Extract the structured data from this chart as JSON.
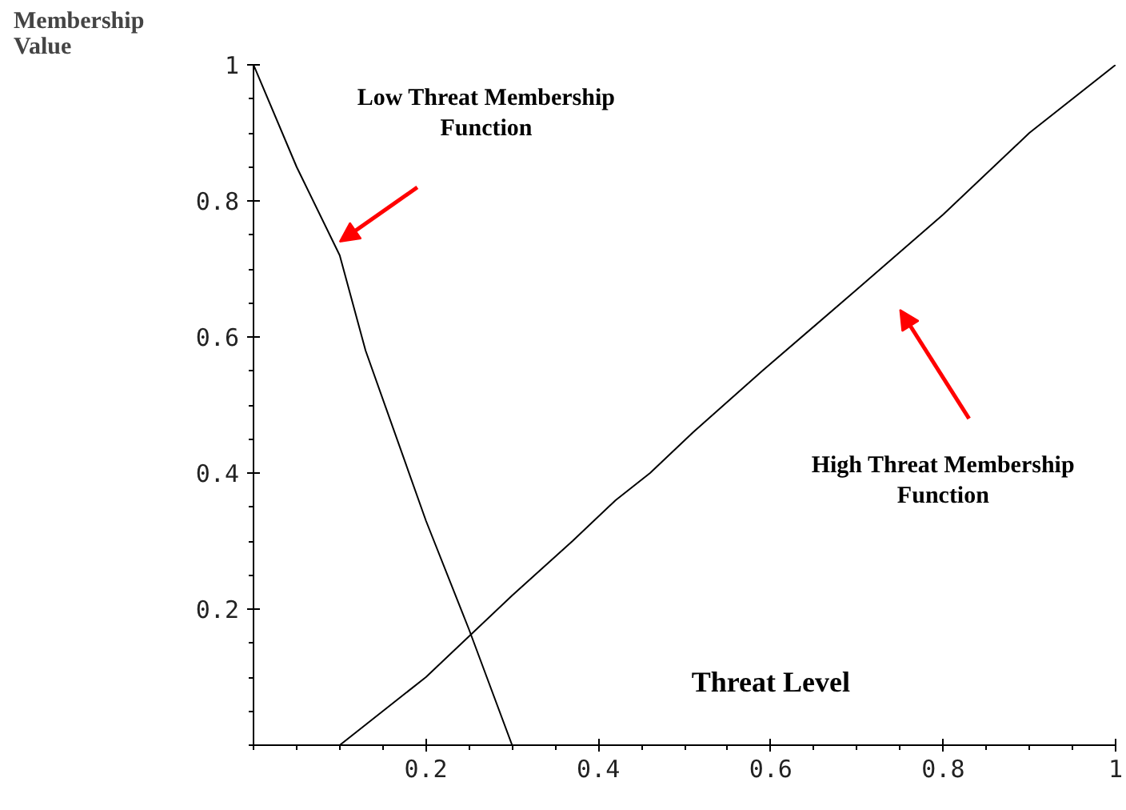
{
  "chart_data": {
    "type": "line",
    "xlabel": "Threat Level",
    "ylabel": "Membership Value",
    "xlim": [
      0,
      1
    ],
    "ylim": [
      0,
      1
    ],
    "xticks": [
      0.2,
      0.4,
      0.6,
      0.8,
      1
    ],
    "yticks": [
      0.2,
      0.4,
      0.6,
      0.8,
      1
    ],
    "grid": false,
    "marker": "none",
    "line_style": "solid",
    "series": [
      {
        "color": "#000000",
        "x": [
          0,
          0.05,
          0.1,
          0.13,
          0.2,
          0.25,
          0.3
        ],
        "values": [
          1,
          0.85,
          0.72,
          0.58,
          0.33,
          0.17,
          0
        ]
      },
      {
        "color": "#000000",
        "x": [
          0.1,
          0.13,
          0.2,
          0.3,
          0.37,
          0.42,
          0.46,
          0.51,
          0.59,
          0.7,
          0.8,
          0.9,
          1
        ],
        "values": [
          0,
          0.03,
          0.1,
          0.22,
          0.3,
          0.36,
          0.4,
          0.46,
          0.55,
          0.67,
          0.78,
          0.9,
          1
        ]
      }
    ],
    "annotations": [
      "Low Threat Membership Function",
      "High Threat Membership Function"
    ]
  }
}
